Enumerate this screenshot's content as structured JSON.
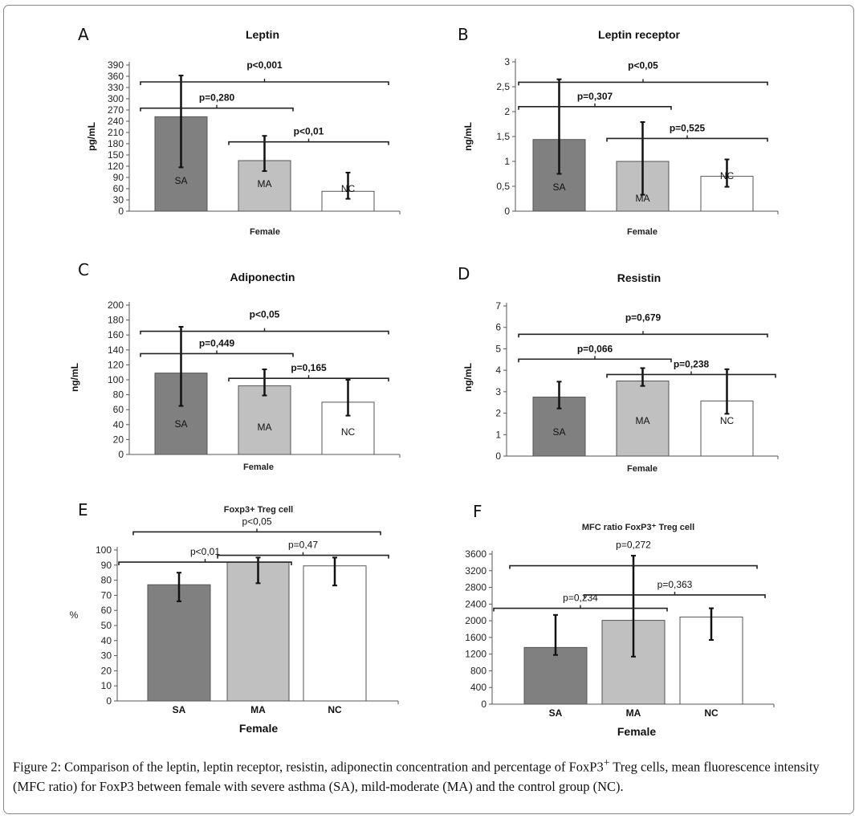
{
  "caption": {
    "label": "Figure 2:",
    "text": " Comparison of the leptin, leptin receptor, resistin, adiponectin concentration and percentage of FoxP3",
    "sup": "+",
    "text2": " Treg cells, mean fluorescence intensity (MFC ratio) for FoxP3 between female with severe asthma (SA), mild-moderate (MA) and the control group (NC)."
  },
  "colors": {
    "SA": "#808080",
    "MA": "#c0c0c0",
    "NC": "#ffffff",
    "outline": "#555555",
    "errorbar": "#111111"
  },
  "chart_data": [
    {
      "panel": "A",
      "type": "bar",
      "title": "Leptin",
      "xlabel": "Female",
      "ylabel": "pg/mL",
      "categories": [
        "SA",
        "MA",
        "NC"
      ],
      "category_labels_inside": true,
      "values": [
        252,
        135,
        53
      ],
      "error_low": [
        117,
        107,
        33
      ],
      "error_high": [
        362,
        201,
        103
      ],
      "ylim": [
        0,
        390
      ],
      "yticks": [
        "0",
        "30",
        "60",
        "90",
        "120",
        "150",
        "180",
        "210",
        "240",
        "270",
        "300",
        "330",
        "360",
        "390"
      ],
      "comparisons": [
        {
          "label": "p<0,001",
          "from": "SA",
          "to": "NC",
          "y": 345
        },
        {
          "label": "p=0,280",
          "from": "SA",
          "to": "MA",
          "y": 275
        },
        {
          "label": "p<0,01",
          "from": "MA",
          "to": "NC",
          "y": 185
        }
      ]
    },
    {
      "panel": "B",
      "type": "bar",
      "title": "Leptin receptor",
      "xlabel": "Female",
      "ylabel": "ng/mL",
      "categories": [
        "SA",
        "MA",
        "NC"
      ],
      "category_labels_inside": true,
      "values": [
        1.44,
        1.0,
        0.7
      ],
      "error_low": [
        0.75,
        0.33,
        0.49
      ],
      "error_high": [
        2.65,
        1.79,
        1.04
      ],
      "ylim": [
        0,
        3
      ],
      "yticks": [
        "0",
        "0,5",
        "1",
        "1,5",
        "2",
        "2,5",
        "3"
      ],
      "comparisons": [
        {
          "label": "p<0,05",
          "from": "SA",
          "to": "NC",
          "y": 2.59
        },
        {
          "label": "p=0,307",
          "from": "SA",
          "to": "MA",
          "y": 2.1
        },
        {
          "label": "p=0,525",
          "from": "MA",
          "to": "NC",
          "y": 1.46
        }
      ]
    },
    {
      "panel": "C",
      "type": "bar",
      "title": "Adiponectin",
      "xlabel": "Female",
      "ylabel": "ng/mL",
      "categories": [
        "SA",
        "MA",
        "NC"
      ],
      "category_labels_inside": true,
      "values": [
        109,
        92,
        70
      ],
      "error_low": [
        65,
        79,
        52
      ],
      "error_high": [
        171,
        114,
        100
      ],
      "ylim": [
        0,
        200
      ],
      "yticks": [
        "0",
        "20",
        "40",
        "60",
        "80",
        "100",
        "120",
        "140",
        "160",
        "180",
        "200"
      ],
      "comparisons": [
        {
          "label": "p<0,05",
          "from": "SA",
          "to": "NC",
          "y": 165
        },
        {
          "label": "p=0,449",
          "from": "SA",
          "to": "MA",
          "y": 135
        },
        {
          "label": "p=0,165",
          "from": "MA",
          "to": "NC",
          "y": 102
        }
      ]
    },
    {
      "panel": "D",
      "type": "bar",
      "title": "Resistin",
      "xlabel": "Female",
      "ylabel": "ng/mL",
      "categories": [
        "SA",
        "MA",
        "NC"
      ],
      "category_labels_inside": true,
      "values": [
        2.75,
        3.5,
        2.57
      ],
      "error_low": [
        2.22,
        3.27,
        1.97
      ],
      "error_high": [
        3.47,
        4.1,
        4.05
      ],
      "ylim": [
        0,
        7
      ],
      "yticks": [
        "0",
        "1",
        "2",
        "3",
        "4",
        "5",
        "6",
        "7"
      ],
      "comparisons": [
        {
          "label": "p=0,679",
          "from": "SA",
          "to": "NC",
          "y": 5.68
        },
        {
          "label": "p=0,066",
          "from": "SA",
          "to": "MA",
          "y": 4.52
        },
        {
          "label": "p=0,238",
          "from": "MA",
          "to": "NC_ext",
          "y": 3.8
        }
      ]
    },
    {
      "panel": "E",
      "type": "bar",
      "title": "Foxp3+  Treg cell",
      "xlabel": "Female",
      "ylabel": "%",
      "categories": [
        "SA",
        "MA",
        "NC"
      ],
      "category_labels_inside": false,
      "values": [
        77,
        92,
        89.5
      ],
      "error_low": [
        66,
        78,
        76.5
      ],
      "error_high": [
        85,
        95,
        95
      ],
      "ylim": [
        0,
        100
      ],
      "yticks": [
        "0",
        "10",
        "20",
        "30",
        "40",
        "50",
        "60",
        "70",
        "80",
        "90",
        "100"
      ],
      "comparisons": [
        {
          "label": "p<0,05",
          "from": "SA",
          "to": "NC",
          "y": 112
        },
        {
          "label": "p<0,01",
          "from": "SA_ext",
          "to": "MA",
          "y": 92
        },
        {
          "label": "p=0,47",
          "from": "MA",
          "to": "NC_ext",
          "y": 96.5
        }
      ]
    },
    {
      "panel": "F",
      "type": "bar",
      "title": "MFC ratio FoxP3⁺ Treg cell",
      "xlabel": "Female",
      "ylabel": "",
      "categories": [
        "SA",
        "MA",
        "NC"
      ],
      "category_labels_inside": false,
      "values": [
        1360,
        2010,
        2090
      ],
      "error_low": [
        1180,
        1140,
        1540
      ],
      "error_high": [
        2140,
        3560,
        2300
      ],
      "ylim": [
        0,
        3800
      ],
      "yticks": [
        "0",
        "400",
        "800",
        "1200",
        "1600",
        "2000",
        "2400",
        "2800",
        "3200",
        "3600"
      ],
      "comparisons": [
        {
          "label": "p=0,272",
          "from": "SA",
          "to": "NC",
          "y": 3320
        },
        {
          "label": "p=0,234",
          "from": "SA_ext",
          "to": "MA",
          "y": 2300
        },
        {
          "label": "p=0,363",
          "from": "MA_left",
          "to": "NC_ext",
          "y": 2620
        }
      ]
    }
  ]
}
